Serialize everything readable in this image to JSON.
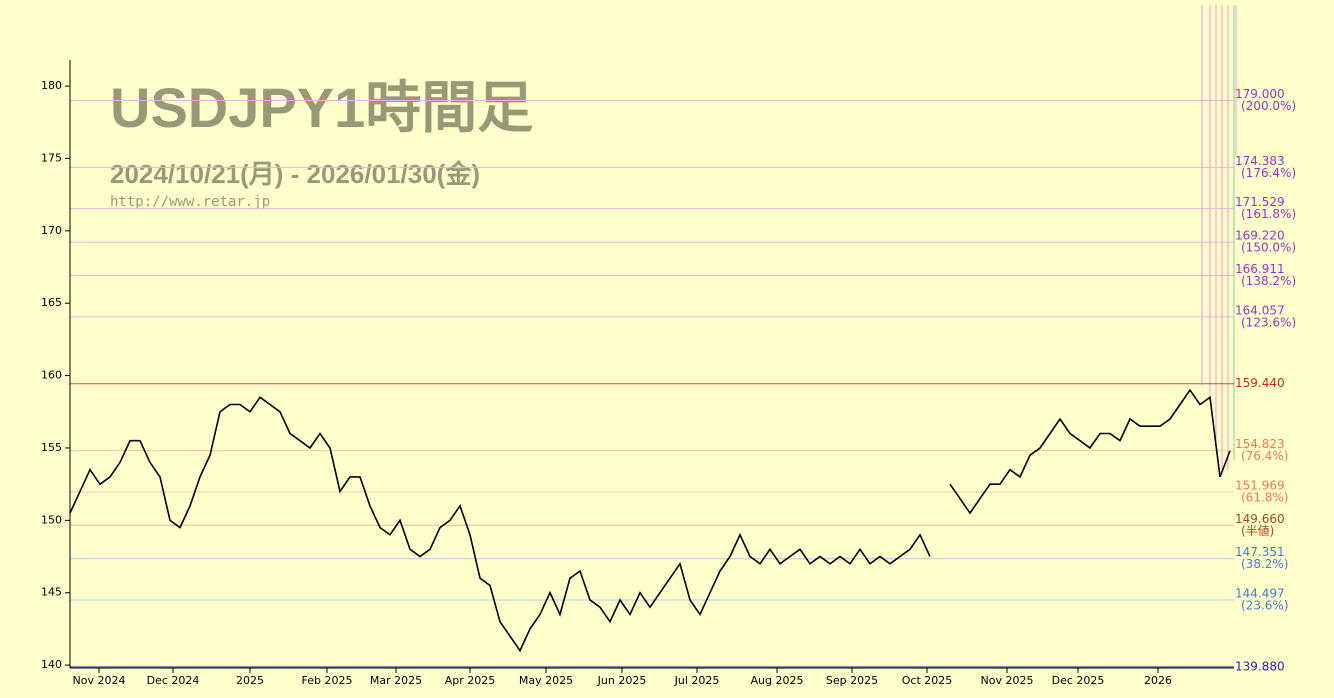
{
  "chart_data": {
    "type": "line",
    "title": "USDJPY1時間足",
    "subtitle": "2024/10/21(月) - 2026/01/30(金)",
    "source": "http://www.retar.jp",
    "series": [
      {
        "name": "USDJPY",
        "color": "#000000",
        "values": [
          150.5,
          152,
          153.5,
          152.5,
          153,
          154,
          155.5,
          155.5,
          154,
          153,
          150,
          149.5,
          151,
          153,
          154.5,
          157.5,
          158,
          158,
          157.5,
          158.5,
          158,
          157.5,
          156,
          155.5,
          155,
          156,
          155,
          152,
          153,
          153,
          151,
          149.5,
          149,
          150,
          148,
          147.5,
          148,
          149.5,
          150,
          151,
          149,
          146,
          145.5,
          143,
          142,
          141,
          142.5,
          143.5,
          145,
          143.5,
          146,
          146.5,
          144.5,
          144,
          143,
          144.5,
          143.5,
          145,
          144,
          145,
          146,
          147,
          144.5,
          143.5,
          145,
          146.5,
          147.5,
          149,
          147.5,
          147,
          148,
          147,
          147.5,
          148,
          147,
          147.5,
          147,
          147.5,
          147,
          148,
          147,
          147.5,
          147,
          147.5,
          148,
          149,
          147.5,
          null,
          152.5,
          151.5,
          150.5,
          151.5,
          152.5,
          152.5,
          153.5,
          153,
          154.5,
          155,
          156,
          157,
          156,
          155.5,
          155,
          156,
          156,
          155.5,
          157,
          156.5,
          156.5,
          156.5,
          157,
          158,
          159,
          158,
          158.5,
          153,
          154.8
        ]
      }
    ],
    "xlim": [
      0,
      116.4
    ],
    "xticks": [
      {
        "value": 2.9,
        "label": "Nov 2024"
      },
      {
        "value": 10.3,
        "label": "Dec 2024"
      },
      {
        "value": 18,
        "label": "2025"
      },
      {
        "value": 25.7,
        "label": "Feb 2025"
      },
      {
        "value": 32.6,
        "label": "Mar 2025"
      },
      {
        "value": 40,
        "label": "Apr 2025"
      },
      {
        "value": 47.6,
        "label": "May 2025"
      },
      {
        "value": 55.2,
        "label": "Jun 2025"
      },
      {
        "value": 62.7,
        "label": "Jul 2025"
      },
      {
        "value": 70.7,
        "label": "Aug 2025"
      },
      {
        "value": 78.2,
        "label": "Sep 2025"
      },
      {
        "value": 85.7,
        "label": "Oct 2025"
      },
      {
        "value": 93.7,
        "label": "Nov 2025"
      },
      {
        "value": 100.8,
        "label": "Dec 2025"
      },
      {
        "value": 108.8,
        "label": "2026"
      }
    ],
    "ylim": [
      139.8,
      181.8
    ],
    "yticks": [
      140,
      145,
      150,
      155,
      160,
      165,
      170,
      175,
      180
    ],
    "levels": [
      {
        "value": 179,
        "label": "179.000",
        "note": "(200.0%)",
        "color": "#9933cc",
        "line_color": "#e8b0e0"
      },
      {
        "value": 174.383,
        "label": "174.383",
        "note": "(176.4%)",
        "color": "#9933cc",
        "line_color": "#e8b0e0"
      },
      {
        "value": 171.529,
        "label": "171.529",
        "note": "(161.8%)",
        "color": "#9933cc",
        "line_color": "#e8b0e0"
      },
      {
        "value": 169.22,
        "label": "169.220",
        "note": "(150.0%)",
        "color": "#9933cc",
        "line_color": "#e8b0e0"
      },
      {
        "value": 166.911,
        "label": "166.911",
        "note": "(138.2%)",
        "color": "#9933cc",
        "line_color": "#e8b0e0"
      },
      {
        "value": 164.057,
        "label": "164.057",
        "note": "(123.6%)",
        "color": "#9933cc",
        "line_color": "#e8b0e0"
      },
      {
        "value": 159.44,
        "label": "159.440",
        "color": "#dd2222",
        "line_color": "#e04040"
      },
      {
        "value": 154.823,
        "label": "154.823",
        "note": "(76.4%)",
        "color": "#ee7755",
        "line_color": "#f4c8a8"
      },
      {
        "value": 151.969,
        "label": "151.969",
        "note": "(61.8%)",
        "color": "#ee7755",
        "line_color": "#f4c8a8"
      },
      {
        "value": 149.66,
        "label": "149.660",
        "note": "(半値)",
        "color": "#aa4422",
        "line_color": "#e8b8a0"
      },
      {
        "value": 147.351,
        "label": "147.351",
        "note": "(38.2%)",
        "color": "#4477dd",
        "line_color": "#b0c8e8"
      },
      {
        "value": 144.497,
        "label": "144.497",
        "note": "(23.6%)",
        "color": "#4477dd",
        "line_color": "#b0c8e8"
      },
      {
        "value": 139.88,
        "label": "139.880",
        "color": "#2222cc",
        "line_color": "#3344cc"
      }
    ]
  }
}
